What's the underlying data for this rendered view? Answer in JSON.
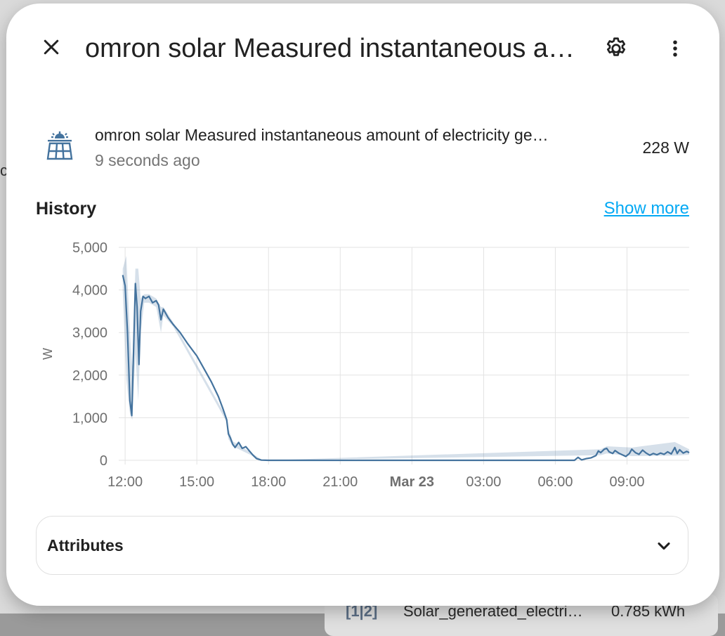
{
  "background": {
    "card_icon": "[1|2]",
    "card_name": "Solar_generated_electri…",
    "card_value": "0.785 kWh"
  },
  "dialog": {
    "title": "omron solar Measured instantaneous a…",
    "close_icon": "close-icon",
    "settings_icon": "gear-icon",
    "more_icon": "dots-vertical-icon"
  },
  "entity": {
    "icon": "solar-panel-icon",
    "name": "omron solar Measured instantaneous amount of electricity ge…",
    "last_changed": "9 seconds ago",
    "state": "228 W"
  },
  "history": {
    "title": "History",
    "show_more": "Show more"
  },
  "chart_data": {
    "type": "line",
    "ylabel": "W",
    "ylim": [
      0,
      5000
    ],
    "yticks": [
      "5,000",
      "4,000",
      "3,000",
      "2,000",
      "1,000",
      "0"
    ],
    "ytick_values": [
      5000,
      4000,
      3000,
      2000,
      1000,
      0
    ],
    "xticks": [
      {
        "label": "12:00",
        "hour": 0,
        "bold": false
      },
      {
        "label": "15:00",
        "hour": 3,
        "bold": false
      },
      {
        "label": "18:00",
        "hour": 6,
        "bold": false
      },
      {
        "label": "21:00",
        "hour": 9,
        "bold": false
      },
      {
        "label": "Mar 23",
        "hour": 12,
        "bold": true
      },
      {
        "label": "03:00",
        "hour": 15,
        "bold": false
      },
      {
        "label": "06:00",
        "hour": 18,
        "bold": false
      },
      {
        "label": "09:00",
        "hour": 21,
        "bold": false
      }
    ],
    "x_range_hours": [
      -0.15,
      23.6
    ],
    "series": [
      {
        "color": "#44739e",
        "points": [
          [
            -0.1,
            4350
          ],
          [
            0.0,
            4100
          ],
          [
            0.1,
            3000
          ],
          [
            0.2,
            1400
          ],
          [
            0.28,
            1050
          ],
          [
            0.35,
            2500
          ],
          [
            0.43,
            4150
          ],
          [
            0.5,
            3600
          ],
          [
            0.58,
            2250
          ],
          [
            0.65,
            3500
          ],
          [
            0.75,
            3850
          ],
          [
            0.85,
            3800
          ],
          [
            1.0,
            3850
          ],
          [
            1.15,
            3700
          ],
          [
            1.3,
            3750
          ],
          [
            1.4,
            3650
          ],
          [
            1.5,
            3300
          ],
          [
            1.6,
            3550
          ],
          [
            1.8,
            3350
          ],
          [
            2.0,
            3200
          ],
          [
            2.3,
            3000
          ],
          [
            2.6,
            2750
          ],
          [
            3.0,
            2450
          ],
          [
            3.3,
            2150
          ],
          [
            3.6,
            1850
          ],
          [
            3.9,
            1500
          ],
          [
            4.1,
            1200
          ],
          [
            4.25,
            950
          ],
          [
            4.32,
            620
          ],
          [
            4.4,
            530
          ],
          [
            4.5,
            380
          ],
          [
            4.6,
            300
          ],
          [
            4.75,
            420
          ],
          [
            4.9,
            280
          ],
          [
            5.05,
            320
          ],
          [
            5.2,
            220
          ],
          [
            5.35,
            120
          ],
          [
            5.5,
            40
          ],
          [
            5.7,
            5
          ],
          [
            6.0,
            0
          ],
          [
            9.0,
            0
          ],
          [
            12.0,
            0
          ],
          [
            15.0,
            0
          ],
          [
            18.0,
            0
          ],
          [
            18.8,
            0
          ],
          [
            18.95,
            70
          ],
          [
            19.1,
            10
          ],
          [
            19.3,
            40
          ],
          [
            19.5,
            60
          ],
          [
            19.7,
            110
          ],
          [
            19.8,
            220
          ],
          [
            19.9,
            180
          ],
          [
            20.05,
            260
          ],
          [
            20.15,
            280
          ],
          [
            20.25,
            200
          ],
          [
            20.4,
            160
          ],
          [
            20.5,
            230
          ],
          [
            20.65,
            170
          ],
          [
            20.8,
            130
          ],
          [
            20.95,
            90
          ],
          [
            21.1,
            160
          ],
          [
            21.2,
            260
          ],
          [
            21.35,
            180
          ],
          [
            21.5,
            140
          ],
          [
            21.65,
            240
          ],
          [
            21.8,
            170
          ],
          [
            21.95,
            120
          ],
          [
            22.1,
            160
          ],
          [
            22.25,
            130
          ],
          [
            22.4,
            170
          ],
          [
            22.55,
            140
          ],
          [
            22.7,
            200
          ],
          [
            22.85,
            150
          ],
          [
            23.0,
            300
          ],
          [
            23.1,
            160
          ],
          [
            23.2,
            250
          ],
          [
            23.35,
            170
          ],
          [
            23.5,
            210
          ],
          [
            23.6,
            180
          ]
        ],
        "band_upper": [
          [
            -0.1,
            4500
          ],
          [
            0.05,
            4800
          ],
          [
            0.2,
            3000
          ],
          [
            0.3,
            2200
          ],
          [
            0.43,
            4500
          ],
          [
            0.55,
            4500
          ],
          [
            0.65,
            3800
          ],
          [
            0.8,
            3900
          ],
          [
            1.0,
            3900
          ],
          [
            1.3,
            3800
          ],
          [
            1.5,
            3600
          ],
          [
            1.6,
            3600
          ],
          [
            2.0,
            3250
          ],
          [
            4.25,
            1000
          ],
          [
            4.32,
            750
          ],
          [
            4.5,
            450
          ],
          [
            5.35,
            150
          ],
          [
            5.7,
            20
          ],
          [
            6.0,
            0
          ],
          [
            19.9,
            260
          ],
          [
            20.15,
            330
          ],
          [
            21.2,
            300
          ],
          [
            23.0,
            430
          ],
          [
            23.6,
            260
          ]
        ],
        "band_lower": [
          [
            -0.1,
            4000
          ],
          [
            0.05,
            1900
          ],
          [
            0.2,
            1100
          ],
          [
            0.3,
            950
          ],
          [
            0.43,
            2500
          ],
          [
            0.55,
            1400
          ],
          [
            0.65,
            3000
          ],
          [
            0.8,
            3700
          ],
          [
            1.0,
            3700
          ],
          [
            1.3,
            3600
          ],
          [
            1.5,
            3000
          ],
          [
            1.6,
            3400
          ],
          [
            2.0,
            3150
          ],
          [
            4.25,
            900
          ],
          [
            4.32,
            500
          ],
          [
            4.5,
            330
          ],
          [
            5.35,
            100
          ],
          [
            5.7,
            0
          ],
          [
            6.0,
            0
          ],
          [
            19.9,
            120
          ],
          [
            20.15,
            160
          ],
          [
            21.2,
            100
          ],
          [
            23.0,
            110
          ],
          [
            23.6,
            130
          ]
        ]
      }
    ]
  },
  "attributes": {
    "label": "Attributes",
    "chevron_icon": "chevron-down-icon"
  }
}
